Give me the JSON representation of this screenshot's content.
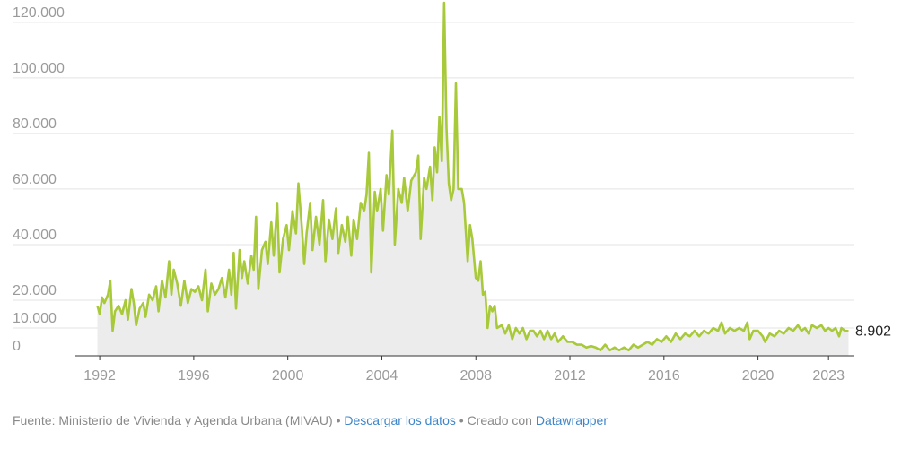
{
  "chart_data": {
    "type": "area",
    "title": "",
    "xlabel": "",
    "ylabel": "",
    "xlim": [
      1991.5,
      2024.1
    ],
    "ylim": [
      0,
      128000
    ],
    "y_ticks": [
      0,
      10000,
      20000,
      40000,
      60000,
      80000,
      100000,
      120000
    ],
    "y_tick_labels": [
      "0",
      "10.000",
      "20.000",
      "40.000",
      "60.000",
      "80.000",
      "100.000",
      "120.000"
    ],
    "x_ticks": [
      1992,
      1996,
      2000,
      2004,
      2008,
      2012,
      2016,
      2020,
      2023
    ],
    "x_tick_labels": [
      "1992",
      "1996",
      "2000",
      "2004",
      "2008",
      "2012",
      "2016",
      "2020",
      "2023"
    ],
    "grid": true,
    "series": [
      {
        "color": "#a8c93a",
        "fill": "#ececec",
        "end_label": "8.902",
        "points": [
          [
            1991.9,
            18000
          ],
          [
            1992.0,
            15000
          ],
          [
            1992.1,
            21000
          ],
          [
            1992.2,
            19000
          ],
          [
            1992.35,
            22000
          ],
          [
            1992.45,
            27000
          ],
          [
            1992.55,
            9000
          ],
          [
            1992.65,
            16000
          ],
          [
            1992.8,
            18000
          ],
          [
            1992.95,
            15000
          ],
          [
            1993.1,
            20000
          ],
          [
            1993.2,
            13000
          ],
          [
            1993.35,
            24000
          ],
          [
            1993.45,
            19000
          ],
          [
            1993.55,
            11000
          ],
          [
            1993.7,
            17000
          ],
          [
            1993.85,
            19000
          ],
          [
            1993.95,
            14000
          ],
          [
            1994.1,
            22000
          ],
          [
            1994.25,
            20000
          ],
          [
            1994.4,
            25000
          ],
          [
            1994.5,
            16000
          ],
          [
            1994.65,
            27000
          ],
          [
            1994.8,
            21000
          ],
          [
            1994.95,
            34000
          ],
          [
            1995.05,
            22000
          ],
          [
            1995.15,
            31000
          ],
          [
            1995.3,
            26000
          ],
          [
            1995.45,
            18000
          ],
          [
            1995.6,
            27000
          ],
          [
            1995.75,
            19000
          ],
          [
            1995.9,
            24000
          ],
          [
            1996.05,
            23000
          ],
          [
            1996.2,
            25000
          ],
          [
            1996.35,
            20000
          ],
          [
            1996.5,
            31000
          ],
          [
            1996.6,
            16000
          ],
          [
            1996.75,
            26000
          ],
          [
            1996.9,
            22000
          ],
          [
            1997.05,
            24000
          ],
          [
            1997.2,
            28000
          ],
          [
            1997.35,
            21000
          ],
          [
            1997.5,
            31000
          ],
          [
            1997.6,
            22000
          ],
          [
            1997.7,
            37000
          ],
          [
            1997.8,
            17000
          ],
          [
            1997.95,
            38000
          ],
          [
            1998.05,
            28000
          ],
          [
            1998.15,
            34000
          ],
          [
            1998.3,
            26000
          ],
          [
            1998.45,
            36000
          ],
          [
            1998.55,
            31000
          ],
          [
            1998.65,
            50000
          ],
          [
            1998.75,
            24000
          ],
          [
            1998.9,
            38000
          ],
          [
            1999.05,
            41000
          ],
          [
            1999.15,
            33000
          ],
          [
            1999.3,
            48000
          ],
          [
            1999.4,
            36000
          ],
          [
            1999.55,
            55000
          ],
          [
            1999.65,
            30000
          ],
          [
            1999.8,
            42000
          ],
          [
            1999.95,
            47000
          ],
          [
            2000.05,
            38000
          ],
          [
            2000.2,
            52000
          ],
          [
            2000.35,
            44000
          ],
          [
            2000.45,
            62000
          ],
          [
            2000.6,
            46000
          ],
          [
            2000.7,
            33000
          ],
          [
            2000.8,
            44000
          ],
          [
            2000.95,
            55000
          ],
          [
            2001.05,
            38000
          ],
          [
            2001.2,
            50000
          ],
          [
            2001.35,
            40000
          ],
          [
            2001.5,
            56000
          ],
          [
            2001.6,
            34000
          ],
          [
            2001.75,
            49000
          ],
          [
            2001.9,
            42000
          ],
          [
            2002.05,
            53000
          ],
          [
            2002.15,
            37000
          ],
          [
            2002.3,
            47000
          ],
          [
            2002.45,
            41000
          ],
          [
            2002.55,
            50000
          ],
          [
            2002.7,
            36000
          ],
          [
            2002.8,
            49000
          ],
          [
            2002.95,
            42000
          ],
          [
            2003.1,
            55000
          ],
          [
            2003.25,
            52000
          ],
          [
            2003.35,
            58000
          ],
          [
            2003.45,
            73000
          ],
          [
            2003.55,
            30000
          ],
          [
            2003.7,
            59000
          ],
          [
            2003.8,
            52000
          ],
          [
            2003.95,
            60000
          ],
          [
            2004.05,
            45000
          ],
          [
            2004.2,
            65000
          ],
          [
            2004.3,
            58000
          ],
          [
            2004.45,
            81000
          ],
          [
            2004.55,
            40000
          ],
          [
            2004.7,
            60000
          ],
          [
            2004.85,
            55000
          ],
          [
            2004.95,
            64000
          ],
          [
            2005.1,
            52000
          ],
          [
            2005.25,
            63000
          ],
          [
            2005.45,
            66000
          ],
          [
            2005.55,
            72000
          ],
          [
            2005.65,
            42000
          ],
          [
            2005.8,
            64000
          ],
          [
            2005.9,
            60000
          ],
          [
            2006.05,
            68000
          ],
          [
            2006.15,
            56000
          ],
          [
            2006.25,
            75000
          ],
          [
            2006.35,
            66000
          ],
          [
            2006.45,
            86000
          ],
          [
            2006.55,
            70000
          ],
          [
            2006.65,
            127000
          ],
          [
            2006.75,
            82000
          ],
          [
            2006.85,
            62000
          ],
          [
            2006.95,
            56000
          ],
          [
            2007.05,
            60000
          ],
          [
            2007.15,
            98000
          ],
          [
            2007.25,
            60000
          ],
          [
            2007.4,
            60000
          ],
          [
            2007.5,
            55000
          ],
          [
            2007.65,
            34000
          ],
          [
            2007.75,
            47000
          ],
          [
            2007.85,
            42000
          ],
          [
            2008.0,
            28000
          ],
          [
            2008.1,
            27000
          ],
          [
            2008.2,
            34000
          ],
          [
            2008.3,
            22000
          ],
          [
            2008.4,
            23000
          ],
          [
            2008.5,
            10000
          ],
          [
            2008.6,
            18000
          ],
          [
            2008.7,
            16000
          ],
          [
            2008.8,
            18000
          ],
          [
            2008.9,
            10000
          ],
          [
            2009.1,
            11000
          ],
          [
            2009.25,
            8000
          ],
          [
            2009.4,
            11000
          ],
          [
            2009.55,
            6000
          ],
          [
            2009.7,
            10000
          ],
          [
            2009.85,
            8000
          ],
          [
            2010.0,
            10000
          ],
          [
            2010.15,
            6000
          ],
          [
            2010.3,
            9000
          ],
          [
            2010.45,
            9000
          ],
          [
            2010.6,
            7000
          ],
          [
            2010.75,
            9000
          ],
          [
            2010.9,
            6000
          ],
          [
            2011.05,
            9000
          ],
          [
            2011.2,
            6000
          ],
          [
            2011.35,
            8000
          ],
          [
            2011.5,
            5000
          ],
          [
            2011.7,
            7000
          ],
          [
            2011.9,
            5000
          ],
          [
            2012.1,
            5000
          ],
          [
            2012.3,
            4000
          ],
          [
            2012.5,
            4000
          ],
          [
            2012.7,
            3000
          ],
          [
            2012.9,
            3500
          ],
          [
            2013.1,
            3000
          ],
          [
            2013.3,
            2000
          ],
          [
            2013.5,
            4000
          ],
          [
            2013.7,
            2000
          ],
          [
            2013.9,
            3000
          ],
          [
            2014.1,
            2000
          ],
          [
            2014.3,
            3000
          ],
          [
            2014.5,
            2000
          ],
          [
            2014.7,
            4000
          ],
          [
            2014.9,
            3000
          ],
          [
            2015.1,
            4000
          ],
          [
            2015.3,
            5000
          ],
          [
            2015.5,
            4000
          ],
          [
            2015.7,
            6000
          ],
          [
            2015.9,
            5000
          ],
          [
            2016.1,
            7000
          ],
          [
            2016.3,
            5000
          ],
          [
            2016.5,
            8000
          ],
          [
            2016.7,
            6000
          ],
          [
            2016.9,
            8000
          ],
          [
            2017.1,
            7000
          ],
          [
            2017.3,
            9000
          ],
          [
            2017.5,
            7000
          ],
          [
            2017.7,
            9000
          ],
          [
            2017.9,
            8000
          ],
          [
            2018.1,
            10000
          ],
          [
            2018.3,
            9000
          ],
          [
            2018.45,
            12000
          ],
          [
            2018.6,
            8000
          ],
          [
            2018.8,
            10000
          ],
          [
            2019.0,
            9000
          ],
          [
            2019.2,
            10000
          ],
          [
            2019.4,
            9000
          ],
          [
            2019.55,
            12000
          ],
          [
            2019.65,
            6000
          ],
          [
            2019.8,
            9000
          ],
          [
            2020.0,
            9000
          ],
          [
            2020.2,
            7000
          ],
          [
            2020.3,
            5000
          ],
          [
            2020.5,
            8000
          ],
          [
            2020.7,
            7000
          ],
          [
            2020.9,
            9000
          ],
          [
            2021.1,
            8000
          ],
          [
            2021.3,
            10000
          ],
          [
            2021.5,
            9000
          ],
          [
            2021.7,
            11000
          ],
          [
            2021.85,
            9000
          ],
          [
            2022.0,
            10000
          ],
          [
            2022.15,
            8000
          ],
          [
            2022.3,
            11000
          ],
          [
            2022.5,
            10000
          ],
          [
            2022.7,
            11000
          ],
          [
            2022.85,
            9000
          ],
          [
            2023.0,
            10000
          ],
          [
            2023.15,
            9000
          ],
          [
            2023.3,
            10000
          ],
          [
            2023.45,
            7000
          ],
          [
            2023.55,
            10000
          ],
          [
            2023.7,
            9000
          ],
          [
            2023.85,
            8902
          ]
        ]
      }
    ]
  },
  "footer": {
    "source_text": "Fuente: Ministerio de Vivienda y Agenda Urbana (MIVAU)",
    "separator": "•",
    "download_link": "Descargar los datos",
    "created_with": "Creado con",
    "datawrapper_link": "Datawrapper"
  }
}
